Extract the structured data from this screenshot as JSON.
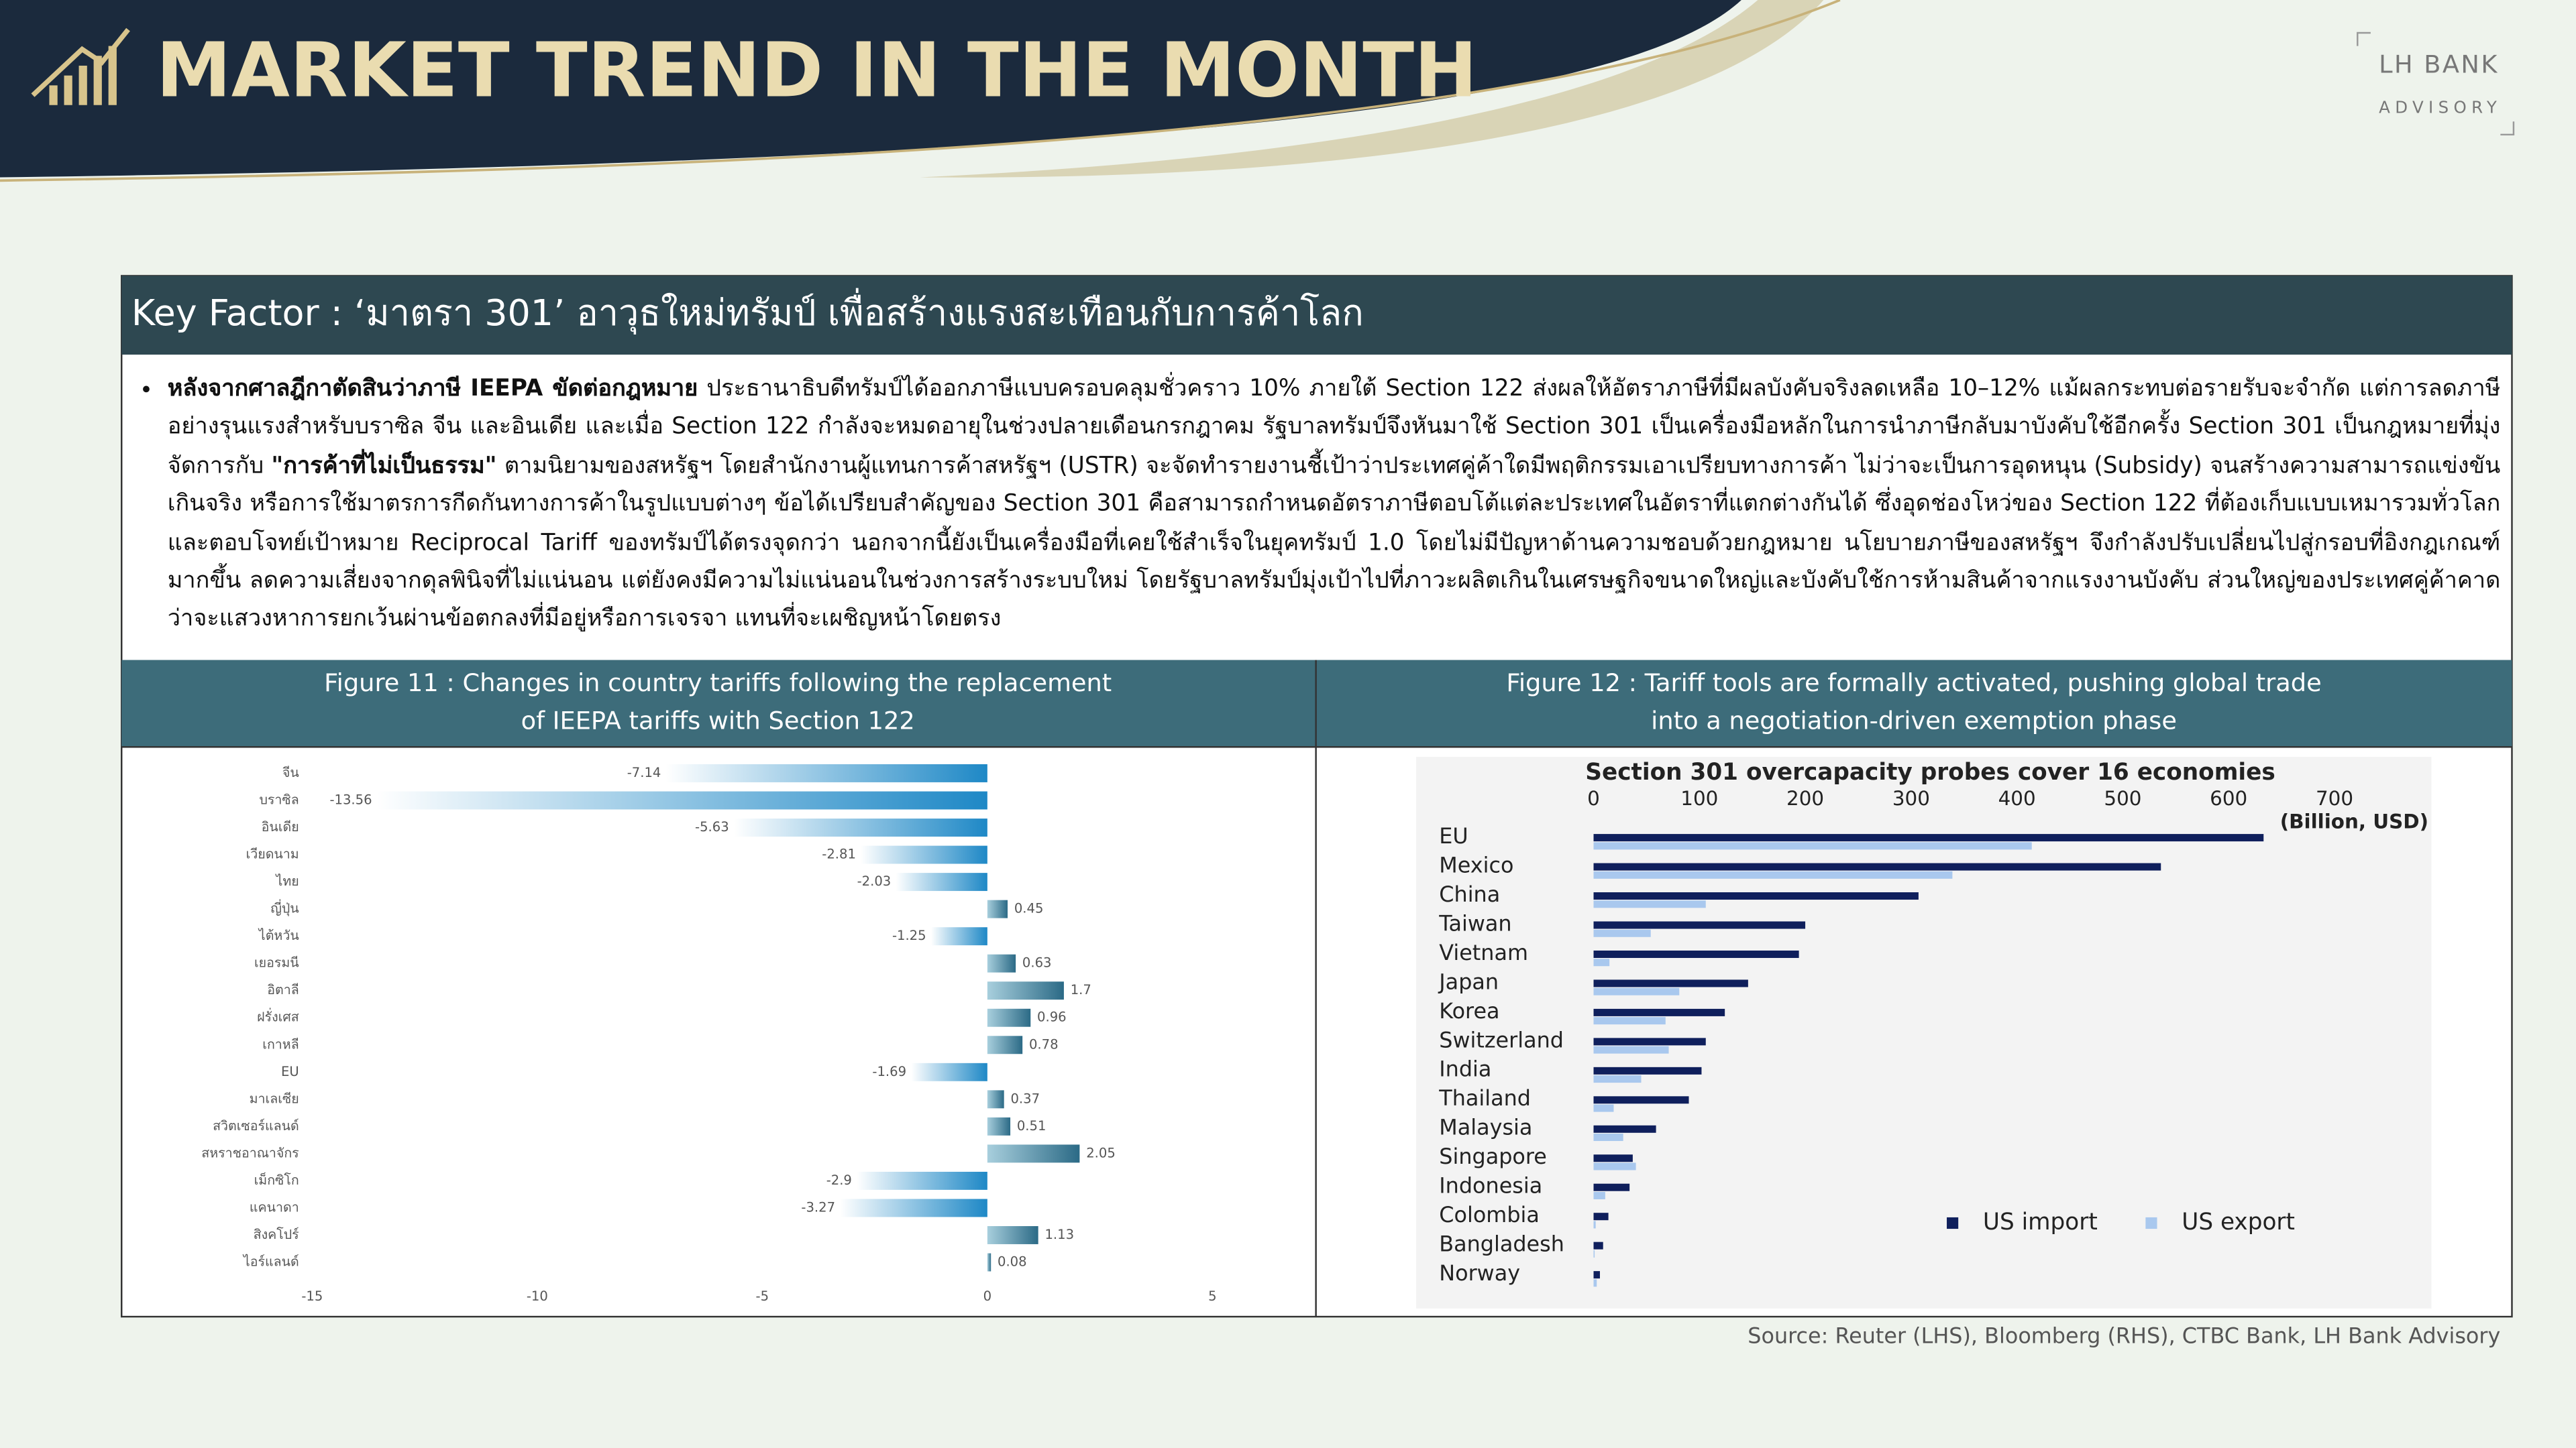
{
  "header": {
    "title": "MARKET TREND IN THE MONTH",
    "logo": {
      "brand": "LH BANK",
      "sub": "ADVISORY"
    }
  },
  "key_factor": {
    "title": "Key Factor : ‘มาตรา 301’ อาวุธใหม่ทรัมป์ เพื่อสร้างแรงสะเทือนกับการค้าโลก",
    "paragraph": [
      {
        "text": "หลังจากศาลฎีกาตัดสินว่าภาษี IEEPA ขัดต่อกฎหมาย",
        "bold": true
      },
      {
        "text": " ประธานาธิบดีทรัมป์ได้ออกภาษีแบบครอบคลุมชั่วคราว 10% ภายใต้ Section 122 ส่งผลให้อัตราภาษีที่มีผลบังคับจริงลดเหลือ 10–12% แม้ผลกระทบต่อรายรับจะจำกัด แต่การลดภาษีอย่างรุนแรงสำหรับบราซิล จีน และอินเดีย และเมื่อ Section 122 กำลังจะหมดอายุในช่วงปลายเดือนกรกฎาคม รัฐบาลทรัมป์จึงหันมาใช้ Section 301 เป็นเครื่องมือหลักในการนำภาษีกลับมาบังคับใช้อีกครั้ง Section 301 เป็นกฎหมายที่มุ่งจัดการกับ ",
        "bold": false
      },
      {
        "text": "\"การค้าที่ไม่เป็นธรรม\"",
        "bold": true
      },
      {
        "text": " ตามนิยามของสหรัฐฯ โดยสำนักงานผู้แทนการค้าสหรัฐฯ (USTR) จะจัดทำรายงานชี้เป้าว่าประเทศคู่ค้าใดมีพฤติกรรมเอาเปรียบทางการค้า ไม่ว่าจะเป็นการอุดหนุน (Subsidy) จนสร้างความสามารถแข่งขันเกินจริง หรือการใช้มาตรการกีดกันทางการค้าในรูปแบบต่างๆ ข้อได้เปรียบสำคัญของ Section 301 คือสามารถกำหนดอัตราภาษีตอบโต้แต่ละประเทศในอัตราที่แตกต่างกันได้ ซึ่งอุดช่องโหว่ของ Section 122 ที่ต้องเก็บแบบเหมารวมทั่วโลก และตอบโจทย์เป้าหมาย Reciprocal Tariff ของทรัมป์ได้ตรงจุดกว่า นอกจากนี้ยังเป็นเครื่องมือที่เคยใช้สำเร็จในยุคทรัมป์ 1.0 โดยไม่มีปัญหาด้านความชอบด้วยกฎหมาย นโยบายภาษีของสหรัฐฯ จึงกำลังปรับเปลี่ยนไปสู่กรอบที่อิงกฎเกณฑ์มากขึ้น ลดความเสี่ยงจากดุลพินิจที่ไม่แน่นอน แต่ยังคงมีความไม่แน่นอนในช่วงการสร้างระบบใหม่ โดยรัฐบาลทรัมป์มุ่งเป้าไปที่ภาวะผลิตเกินในเศรษฐกิจขนาดใหญ่และบังคับใช้การห้ามสินค้าจากแรงงานบังคับ ส่วนใหญ่ของประเทศคู่ค้าคาดว่าจะแสวงหาการยกเว้นผ่านข้อตกลงที่มีอยู่หรือการเจรจา แทนที่จะเผชิญหน้าโดยตรง",
        "bold": false
      }
    ]
  },
  "figures": [
    {
      "caption_lines": [
        "Figure 11 :  Changes in country tariffs following the replacement",
        "of IEEPA tariffs with Section 122"
      ]
    },
    {
      "caption_lines": [
        "Figure 12 : Tariff tools are formally activated, pushing global trade",
        "into a negotiation-driven exemption phase"
      ]
    }
  ],
  "chart_data": [
    {
      "type": "hbar",
      "categories": [
        "จีน",
        "บราซิล",
        "อินเดีย",
        "เวียดนาม",
        "ไทย",
        "ญี่ปุ่น",
        "ไต้หวัน",
        "เยอรมนี",
        "อิตาลี",
        "ฝรั่งเศส",
        "เกาหลี",
        "EU",
        "มาเลเซีย",
        "สวิตเซอร์แลนด์",
        "สหราชอาณาจักร",
        "เม็กซิโก",
        "แคนาดา",
        "สิงคโปร์",
        "ไอร์แลนด์"
      ],
      "values": [
        -7.14,
        -13.56,
        -5.63,
        -2.81,
        -2.03,
        0.45,
        -1.25,
        0.63,
        1.7,
        0.96,
        0.78,
        -1.69,
        0.37,
        0.51,
        2.05,
        -2.9,
        -3.27,
        1.13,
        0.08
      ],
      "color": "#1e88c6",
      "positive_color": "#2b6a86",
      "xlim": [
        -15,
        5
      ],
      "xticks": [
        -15,
        -10,
        -5,
        0,
        5
      ]
    },
    {
      "type": "grouped-hbar",
      "title": "Section 301 overcapacity probes cover 16 economies",
      "x_label": "(Billion, USD)",
      "categories": [
        "EU",
        "Mexico",
        "China",
        "Taiwan",
        "Vietnam",
        "Japan",
        "Korea",
        "Switzerland",
        "India",
        "Thailand",
        "Malaysia",
        "Singapore",
        "Indonesia",
        "Colombia",
        "Bangladesh",
        "Norway"
      ],
      "series": [
        {
          "name": "US import",
          "color": "#0f1f5c",
          "values": [
            633,
            536,
            307,
            200,
            194,
            146,
            124,
            106,
            102,
            90,
            59,
            37,
            34,
            14,
            9,
            6
          ]
        },
        {
          "name": "US export",
          "color": "#a9c8ee",
          "values": [
            414,
            339,
            106,
            54,
            15,
            81,
            68,
            71,
            45,
            19,
            28,
            40,
            11,
            2,
            1,
            3
          ]
        }
      ],
      "xlim": [
        0,
        700
      ],
      "xticks": [
        0,
        100,
        200,
        300,
        400,
        500,
        600,
        700
      ],
      "legend": "lower right"
    }
  ],
  "source": "Source: Reuter (LHS), Bloomberg (RHS), CTBC Bank, LH Bank Advisory"
}
